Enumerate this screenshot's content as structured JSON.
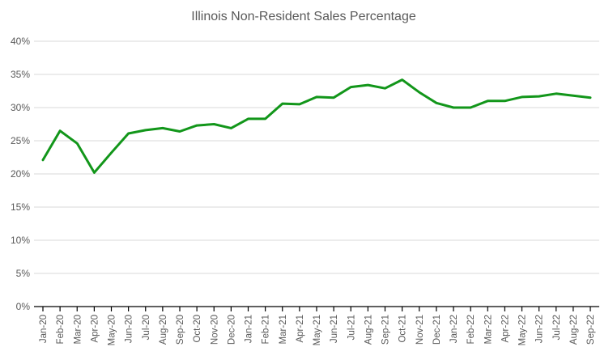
{
  "chart_data": {
    "type": "line",
    "title": "Illinois Non-Resident Sales Percentage",
    "xlabel": "",
    "ylabel": "",
    "ylim": [
      0,
      40
    ],
    "yticks": [
      0,
      5,
      10,
      15,
      20,
      25,
      30,
      35,
      40
    ],
    "ytick_labels": [
      "0%",
      "5%",
      "10%",
      "15%",
      "20%",
      "25%",
      "30%",
      "35%",
      "40%"
    ],
    "grid": true,
    "legend": "none",
    "categories": [
      "Jan-20",
      "Feb-20",
      "Mar-20",
      "Apr-20",
      "May-20",
      "Jun-20",
      "Jul-20",
      "Aug-20",
      "Sep-20",
      "Oct-20",
      "Nov-20",
      "Dec-20",
      "Jan-21",
      "Feb-21",
      "Mar-21",
      "Apr-21",
      "May-21",
      "Jun-21",
      "Jul-21",
      "Aug-21",
      "Sep-21",
      "Oct-21",
      "Nov-21",
      "Dec-21",
      "Jan-22",
      "Feb-22",
      "Mar-22",
      "Apr-22",
      "May-22",
      "Jun-22",
      "Jul-22",
      "Aug-22",
      "Sep-22"
    ],
    "series": [
      {
        "name": "Non-Resident Sales %",
        "color": "#12961a",
        "values": [
          22.1,
          26.5,
          24.6,
          20.2,
          23.2,
          26.1,
          26.6,
          26.9,
          26.4,
          27.3,
          27.5,
          26.9,
          28.3,
          28.3,
          30.6,
          30.5,
          31.6,
          31.5,
          33.1,
          33.4,
          32.9,
          34.2,
          32.3,
          30.7,
          30.0,
          30.0,
          31.0,
          31.0,
          31.6,
          31.7,
          32.1,
          31.8,
          31.5
        ]
      }
    ]
  }
}
